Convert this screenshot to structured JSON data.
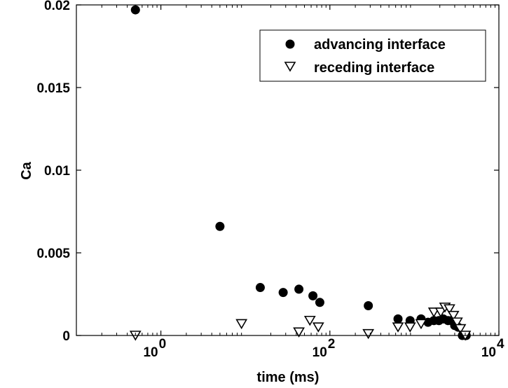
{
  "chart_data": {
    "type": "scatter",
    "title": "",
    "xlabel": "time (ms)",
    "ylabel": "Ca",
    "xscale": "log",
    "xlim": [
      0.1,
      10000
    ],
    "ylim": [
      0,
      0.02
    ],
    "grid": false,
    "legend_position": "top-right",
    "x_ticks": [
      {
        "value": 1,
        "base": "10",
        "exp": "0"
      },
      {
        "value": 100,
        "base": "10",
        "exp": "2"
      },
      {
        "value": 10000,
        "base": "10",
        "exp": "4"
      }
    ],
    "y_ticks": [
      {
        "value": 0,
        "label": "0"
      },
      {
        "value": 0.005,
        "label": "0.005"
      },
      {
        "value": 0.01,
        "label": "0.01"
      },
      {
        "value": 0.015,
        "label": "0.015"
      },
      {
        "value": 0.02,
        "label": "0.02"
      }
    ],
    "series": [
      {
        "name": "advancing interface",
        "marker": "circle",
        "color": "#000000",
        "points": [
          [
            0.5,
            0.0197
          ],
          [
            5.0,
            0.0066
          ],
          [
            15,
            0.0029
          ],
          [
            28,
            0.0026
          ],
          [
            43,
            0.0028
          ],
          [
            63,
            0.0024
          ],
          [
            76,
            0.002
          ],
          [
            285,
            0.0018
          ],
          [
            640,
            0.001
          ],
          [
            890,
            0.0009
          ],
          [
            1200,
            0.001
          ],
          [
            1450,
            0.0008
          ],
          [
            1700,
            0.0009
          ],
          [
            1950,
            0.0009
          ],
          [
            2200,
            0.001
          ],
          [
            2500,
            0.0009
          ],
          [
            2750,
            0.0009
          ],
          [
            3000,
            0.0006
          ],
          [
            3300,
            0.0005
          ],
          [
            3700,
            0.0
          ],
          [
            4100,
            0.0
          ]
        ]
      },
      {
        "name": "receding interface",
        "marker": "triangle-down",
        "color": "#000000",
        "points": [
          [
            0.5,
            0.0
          ],
          [
            9.0,
            0.0007
          ],
          [
            43,
            0.0002
          ],
          [
            58,
            0.0009
          ],
          [
            73,
            0.0005
          ],
          [
            285,
            0.0001
          ],
          [
            640,
            0.0005
          ],
          [
            890,
            0.0005
          ],
          [
            1200,
            0.0007
          ],
          [
            1700,
            0.0014
          ],
          [
            2050,
            0.0014
          ],
          [
            2300,
            0.0017
          ],
          [
            2600,
            0.0016
          ],
          [
            2900,
            0.0012
          ],
          [
            3200,
            0.0008
          ],
          [
            3500,
            0.0004
          ],
          [
            4000,
            0.0
          ]
        ]
      }
    ]
  }
}
